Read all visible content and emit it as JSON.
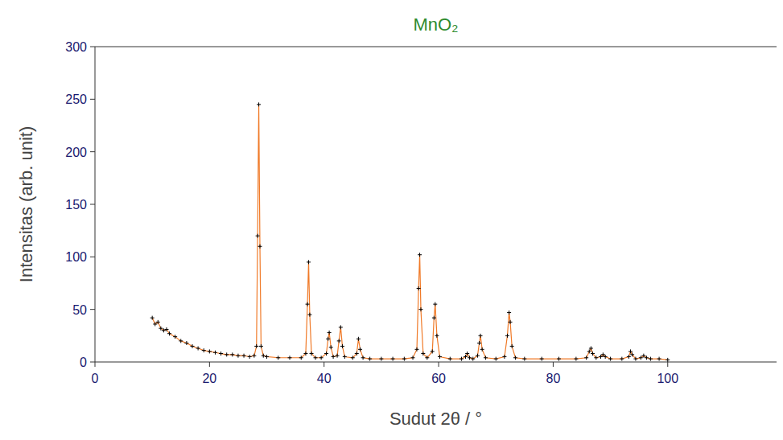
{
  "chart_data": {
    "type": "line",
    "title": "MnO₂",
    "x_label": "Sudut 2θ / °",
    "y_label": "Intensitas (arb. unit)",
    "x": [
      10,
      10.5,
      11,
      11.5,
      12,
      12.5,
      13,
      14,
      15,
      16,
      17,
      18,
      19,
      20,
      21,
      22,
      23,
      24,
      25,
      26,
      27,
      27.8,
      28.2,
      28.4,
      28.6,
      28.8,
      29.0,
      29.4,
      30,
      32,
      34,
      36,
      36.8,
      37.1,
      37.3,
      37.5,
      37.8,
      38.5,
      39.5,
      40.4,
      40.7,
      40.9,
      41.2,
      41.6,
      42.3,
      42.6,
      42.9,
      43.2,
      43.6,
      45,
      45.7,
      46.0,
      46.3,
      46.8,
      48,
      50,
      52,
      54,
      55.5,
      56.2,
      56.5,
      56.7,
      56.9,
      57.3,
      58,
      58.9,
      59.2,
      59.4,
      59.7,
      60.2,
      62,
      64,
      64.7,
      65,
      65.4,
      66,
      66.8,
      67.1,
      67.3,
      67.6,
      68.2,
      70,
      71.5,
      72.0,
      72.3,
      72.5,
      72.8,
      73.4,
      75,
      78,
      81,
      84,
      85.8,
      86.3,
      86.6,
      86.9,
      87.5,
      88.3,
      88.7,
      89.1,
      90,
      92,
      93.2,
      93.5,
      93.8,
      94.4,
      95.3,
      95.8,
      96.3,
      97,
      98.5,
      100
    ],
    "series": [
      {
        "color": "#f07a28",
        "marker": "plus",
        "line_style": "solid",
        "values": [
          42,
          36,
          38,
          32,
          30,
          31,
          27,
          24,
          20,
          18,
          15,
          13,
          11,
          10,
          9,
          8,
          7,
          7,
          6,
          6,
          5,
          6,
          15,
          120,
          245,
          110,
          15,
          6,
          5,
          4,
          4,
          4,
          8,
          55,
          95,
          45,
          8,
          4,
          4,
          8,
          22,
          28,
          14,
          5,
          6,
          20,
          33,
          15,
          5,
          4,
          8,
          22,
          12,
          4,
          3,
          3,
          3,
          3,
          4,
          12,
          70,
          102,
          50,
          8,
          4,
          10,
          42,
          55,
          25,
          5,
          3,
          3,
          5,
          8,
          4,
          3,
          6,
          18,
          25,
          12,
          4,
          3,
          5,
          25,
          47,
          38,
          15,
          4,
          3,
          3,
          3,
          3,
          4,
          10,
          13,
          8,
          4,
          5,
          7,
          5,
          3,
          3,
          5,
          10,
          7,
          3,
          4,
          6,
          4,
          3,
          3,
          2
        ]
      }
    ],
    "xlim": [
      0,
      119
    ],
    "ylim": [
      0,
      300
    ],
    "xticks": [
      0,
      20,
      40,
      60,
      80,
      100
    ],
    "yticks": [
      0,
      50,
      100,
      150,
      200,
      250,
      300
    ],
    "grid": false
  }
}
